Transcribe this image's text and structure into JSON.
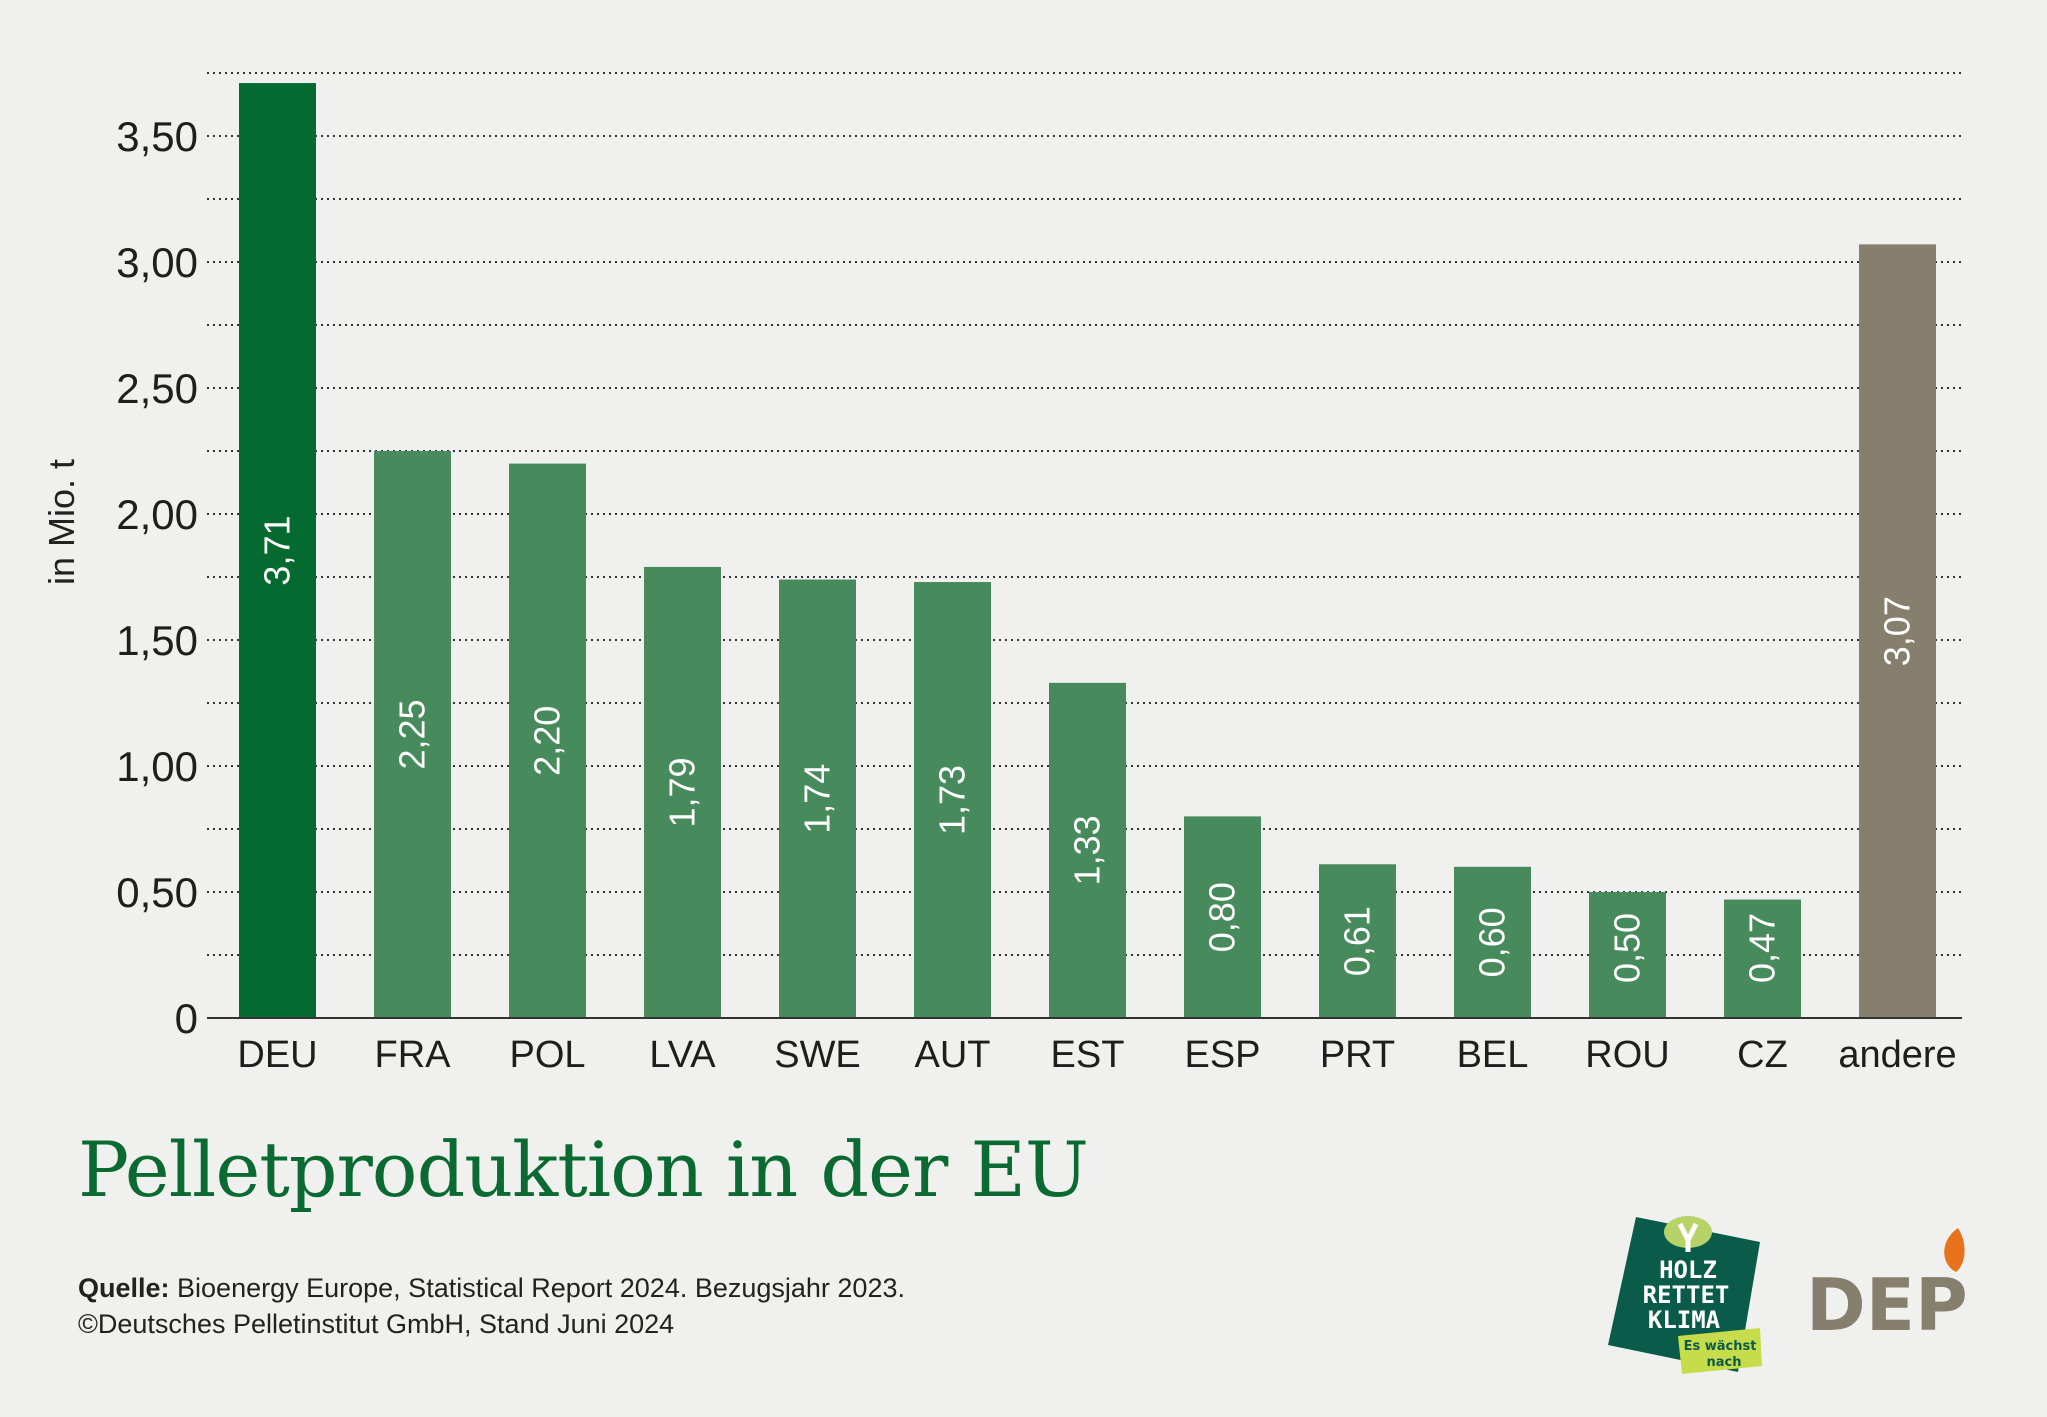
{
  "chart_data": {
    "type": "bar",
    "title": "Pelletproduktion in der EU",
    "ylabel": "in Mio. t",
    "xlabel": "",
    "categories": [
      "DEU",
      "FRA",
      "POL",
      "LVA",
      "SWE",
      "AUT",
      "EST",
      "ESP",
      "PRT",
      "BEL",
      "ROU",
      "CZ",
      "andere"
    ],
    "values": [
      3.71,
      2.25,
      2.2,
      1.79,
      1.74,
      1.73,
      1.33,
      0.8,
      0.61,
      0.6,
      0.5,
      0.47,
      3.07
    ],
    "value_labels": [
      "3,71",
      "2,25",
      "2,20",
      "1,79",
      "1,74",
      "1,73",
      "1,33",
      "0,80",
      "0,61",
      "0,60",
      "0,50",
      "0,47",
      "3,07"
    ],
    "ylim": [
      0,
      3.75
    ],
    "yticks": [
      0,
      0.5,
      1,
      1.5,
      2,
      2.5,
      3,
      3.5
    ],
    "ytick_labels": [
      "0",
      "0,50",
      "1,00",
      "1,50",
      "2,00",
      "2,50",
      "3,00",
      "3,50"
    ],
    "grid": "dotted horizontal every 0.25",
    "legend": "none",
    "colors": {
      "highlight": "#046a30",
      "default": "#478a5c",
      "other": "#877f6d",
      "grid": "#333333",
      "background": "#f0f1ee"
    }
  },
  "source": {
    "label": "Quelle:",
    "text": " Bioenergy Europe, Statistical Report 2024. Bezugsjahr 2023.",
    "copyright": "©Deutsches Pelletinstitut GmbH, Stand  Juni 2024"
  },
  "logos": {
    "holz": {
      "lines": [
        "HOLZ",
        "RETTET",
        "KLIMA"
      ],
      "tag": [
        "Es wächst",
        "nach"
      ]
    },
    "depi": "DEPI"
  }
}
